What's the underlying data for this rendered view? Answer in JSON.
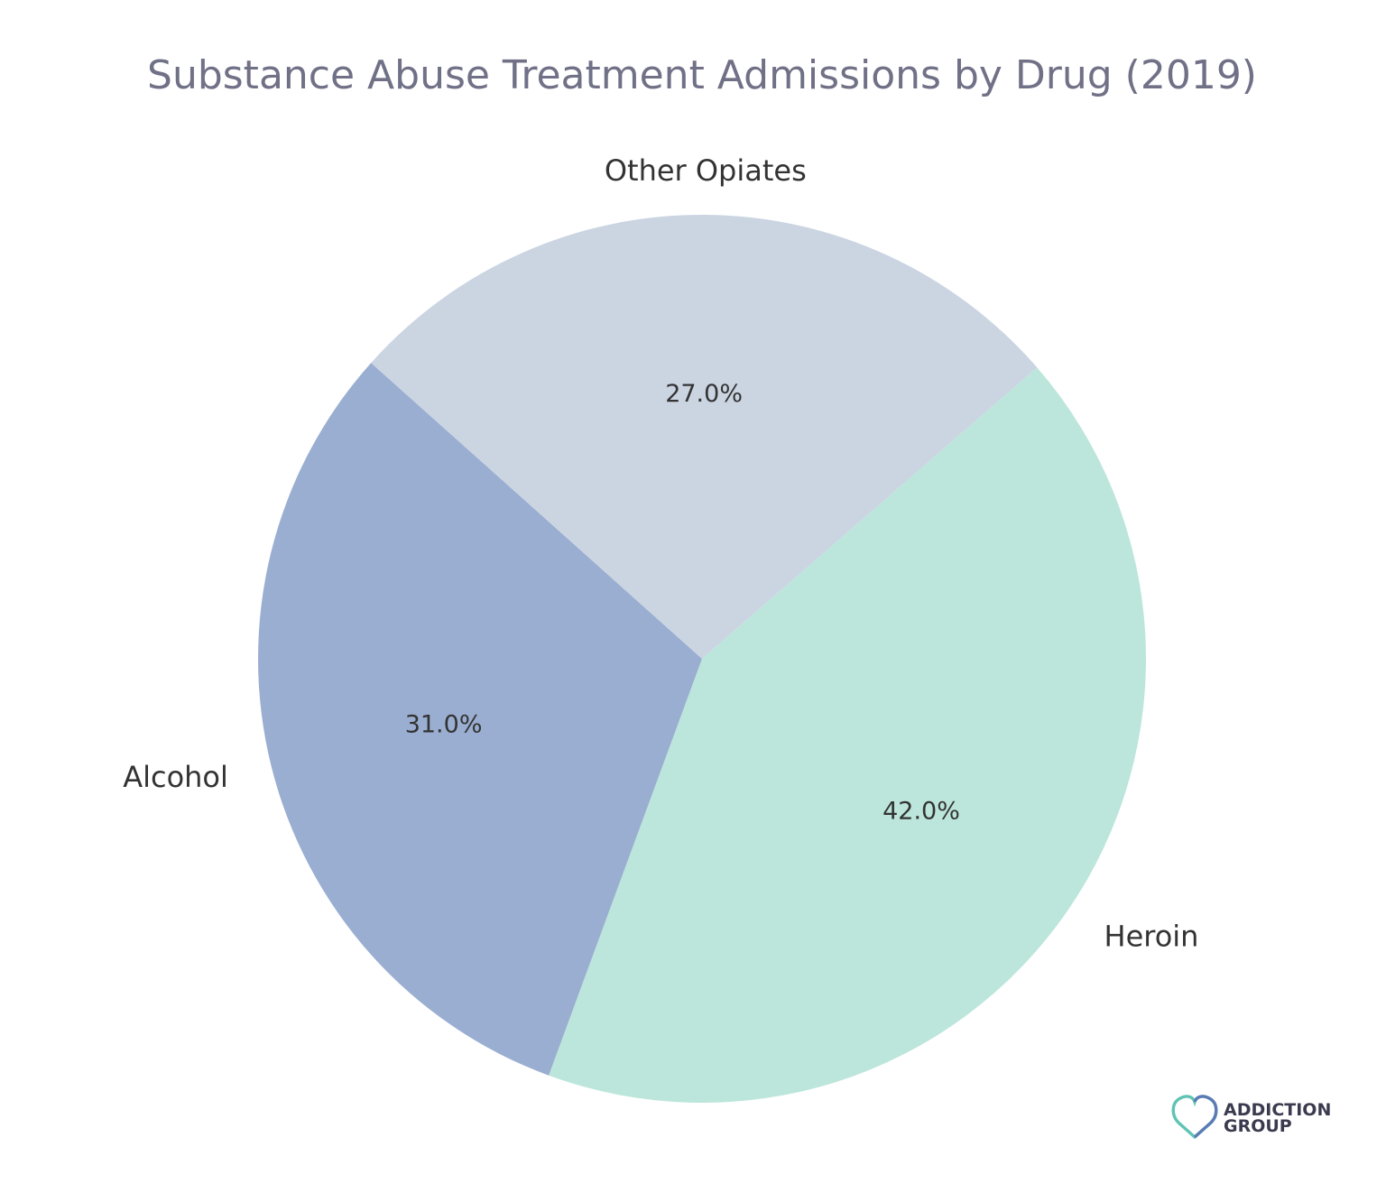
{
  "chart_data": {
    "type": "pie",
    "title": "Substance Abuse Treatment Admissions by Drug (2019)",
    "categories": [
      "Heroin",
      "Alcohol",
      "Other Opiates"
    ],
    "values": [
      42.0,
      31.0,
      27.0
    ],
    "value_labels": [
      "42.0%",
      "31.0%",
      "27.0%"
    ],
    "colors": [
      "#bce6db",
      "#9aaed1",
      "#cbd5e2"
    ],
    "start_angle_deg": 41,
    "direction": "clockwise",
    "legend": "none"
  },
  "logo": {
    "line1": "ADDICTION",
    "line2": "GROUP",
    "colors": [
      "#5fc4b4",
      "#5b7bb5"
    ]
  }
}
